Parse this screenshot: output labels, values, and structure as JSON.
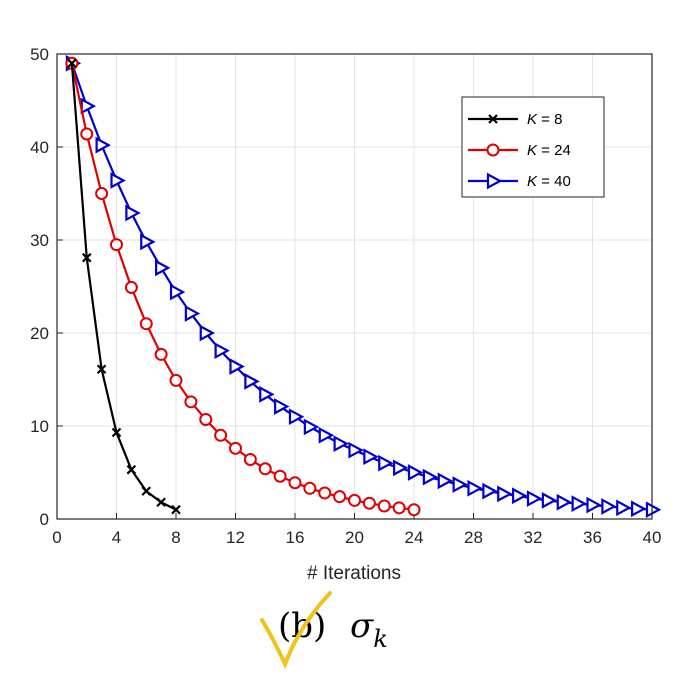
{
  "chart_data": {
    "type": "line",
    "title": "",
    "xlabel": "# Iterations",
    "ylabel": "",
    "xlim": [
      0,
      40
    ],
    "ylim": [
      0,
      50
    ],
    "xticks": [
      "0",
      "4",
      "8",
      "12",
      "16",
      "20",
      "24",
      "28",
      "32",
      "36",
      "40"
    ],
    "yticks": [
      "0",
      "10",
      "20",
      "30",
      "40",
      "50"
    ],
    "grid": true,
    "legend_placement": "top-right",
    "series": [
      {
        "name": "K = 8",
        "name_var": "K",
        "name_rest": " = 8",
        "color": "#000000",
        "marker": "x",
        "x": [
          1,
          2,
          3,
          4,
          5,
          6,
          7,
          8
        ],
        "values": [
          49,
          28.1,
          16.1,
          9.3,
          5.3,
          3.0,
          1.8,
          1.0
        ]
      },
      {
        "name": "K = 24",
        "name_var": "K",
        "name_rest": " = 24",
        "color": "#e00000",
        "marker": "circle",
        "x": [
          1,
          2,
          3,
          4,
          5,
          6,
          7,
          8,
          9,
          10,
          11,
          12,
          13,
          14,
          15,
          16,
          17,
          18,
          19,
          20,
          21,
          22,
          23,
          24
        ],
        "values": [
          49,
          41.4,
          35.0,
          29.5,
          24.9,
          21.0,
          17.7,
          14.9,
          12.6,
          10.7,
          9.0,
          7.6,
          6.4,
          5.4,
          4.6,
          3.9,
          3.3,
          2.8,
          2.4,
          2.0,
          1.7,
          1.4,
          1.2,
          1.0
        ]
      },
      {
        "name": "K = 40",
        "name_var": "K",
        "name_rest": " = 40",
        "color": "#0000d0",
        "marker": "triangle-right",
        "x": [
          1,
          2,
          3,
          4,
          5,
          6,
          7,
          8,
          9,
          10,
          11,
          12,
          13,
          14,
          15,
          16,
          17,
          18,
          19,
          20,
          21,
          22,
          23,
          24,
          25,
          26,
          27,
          28,
          29,
          30,
          31,
          32,
          33,
          34,
          35,
          36,
          37,
          38,
          39,
          40
        ],
        "values": [
          49,
          44.4,
          40.2,
          36.4,
          32.9,
          29.8,
          27.0,
          24.4,
          22.1,
          20.0,
          18.1,
          16.4,
          14.8,
          13.4,
          12.1,
          11.0,
          9.9,
          9.0,
          8.1,
          7.4,
          6.7,
          6.0,
          5.5,
          5.0,
          4.5,
          4.1,
          3.7,
          3.3,
          3.0,
          2.7,
          2.5,
          2.2,
          2.0,
          1.8,
          1.65,
          1.5,
          1.35,
          1.2,
          1.1,
          1.0
        ]
      }
    ]
  },
  "caption": {
    "label": "(b)",
    "symbol": "σ",
    "subscript": "k",
    "check_color": "#f2c21b"
  }
}
